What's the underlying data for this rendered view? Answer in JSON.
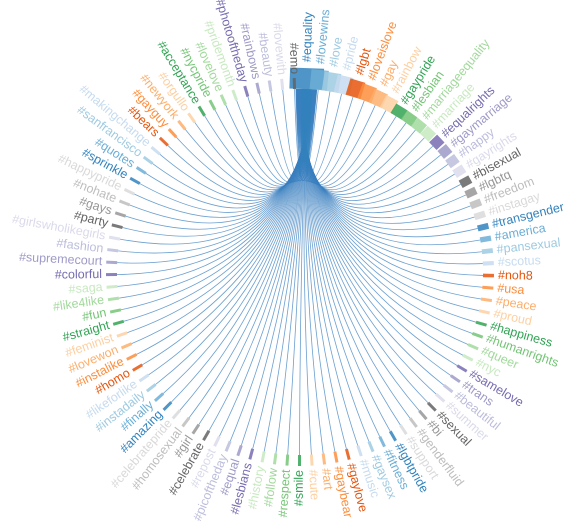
{
  "nodes": [
    "#equality",
    "#lovewins",
    "#love",
    "#pride",
    "#lgbt",
    "#loveislove",
    "#gay",
    "#rainbow",
    "#gaypride",
    "#lesbian",
    "#marriageequality",
    "#marriage",
    "#equalrights",
    "#gaymarriage",
    "#happy",
    "#gayrights",
    "#bisexual",
    "#lgbtq",
    "#freedom",
    "#instagay",
    "#transgender",
    "#america",
    "#pansexual",
    "#scotus",
    "#noh8",
    "#usa",
    "#peace",
    "#proud",
    "#happiness",
    "#humanrights",
    "#queer",
    "#nyc",
    "#samelove",
    "#trans",
    "#beautiful",
    "#summer",
    "#sexual",
    "#bi",
    "#genderfluid",
    "#support",
    "#lgbtpride",
    "#fitness",
    "#gaysex",
    "#music",
    "#gaylove",
    "#gaybear",
    "#art",
    "#cute",
    "#smile",
    "#respect",
    "#follow",
    "#history",
    "#lesbians",
    "#equal",
    "#picoftheday",
    "#repost",
    "#celebrate",
    "#girl",
    "#homosexual",
    "#celebratepride",
    "#amazing",
    "#finally",
    "#instadaily",
    "#likeforlike",
    "#homo",
    "#instalike",
    "#lovewon",
    "#feminist",
    "#straight",
    "#fun",
    "#like4like",
    "#saga",
    "#colorful",
    "#supremecourt",
    "#fashion",
    "#girlswholikegirls",
    "#party",
    "#gays",
    "#nohate",
    "#happypride",
    "#sprinkle",
    "#quotes",
    "#sanfrancisco",
    "#makingchange",
    "#bears",
    "#gayguy",
    "#newyork",
    "#orgullo",
    "#acceptance",
    "#nycpride",
    "#lovelove",
    "#pridemonth",
    "#photooftheday",
    "#rainbows",
    "#beauty",
    "#lovewith",
    "#emo"
  ],
  "palette": [
    "#3182bd",
    "#6baed6",
    "#9ecae1",
    "#c6dbef",
    "#e6550d",
    "#fd8d3c",
    "#fdae6b",
    "#fdd0a2",
    "#31a354",
    "#74c476",
    "#a1d99b",
    "#c7e9c0",
    "#756bb1",
    "#9e9ac8",
    "#bcbddc",
    "#dadaeb",
    "#636363",
    "#969696",
    "#bdbdbd",
    "#d9d9d9"
  ]
}
